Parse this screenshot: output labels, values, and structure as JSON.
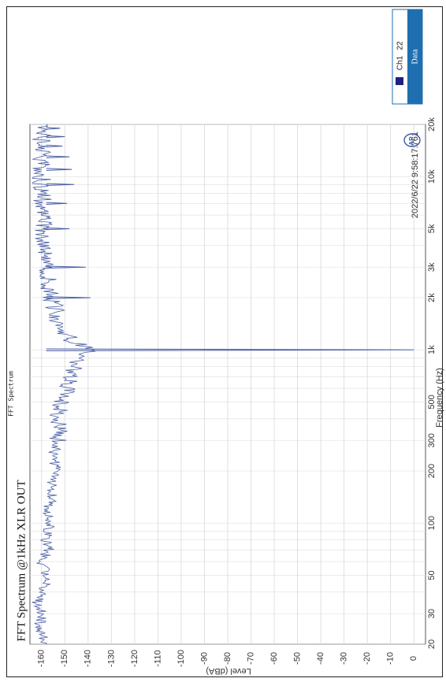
{
  "chart_data": {
    "type": "line",
    "title": "FFT Spectrum @1kHz XLR OUT",
    "subtitle": "FFT Spectrum",
    "timestamp": "2022/6/22 9:58:17.761",
    "xlabel": "Frequency (Hz)",
    "ylabel": "Level (dBA)",
    "x_scale": "log",
    "xlim": [
      20,
      20000
    ],
    "ylim": [
      -165,
      5
    ],
    "x_ticks": [
      {
        "value": 20,
        "label": "20"
      },
      {
        "value": 30,
        "label": "30"
      },
      {
        "value": 50,
        "label": "50"
      },
      {
        "value": 100,
        "label": "100"
      },
      {
        "value": 200,
        "label": "200"
      },
      {
        "value": 300,
        "label": "300"
      },
      {
        "value": 500,
        "label": "500"
      },
      {
        "value": 1000,
        "label": "1k"
      },
      {
        "value": 2000,
        "label": "2k"
      },
      {
        "value": 3000,
        "label": "3k"
      },
      {
        "value": 5000,
        "label": "5k"
      },
      {
        "value": 10000,
        "label": "10k"
      },
      {
        "value": 20000,
        "label": "20k"
      }
    ],
    "y_ticks": [
      0,
      -10,
      -20,
      -30,
      -40,
      -50,
      -60,
      -70,
      -80,
      -90,
      -100,
      -110,
      -120,
      -130,
      -140,
      -150,
      -160
    ],
    "grid": true,
    "legend": {
      "title": "Data",
      "placement": "top-right",
      "entries": [
        {
          "label": "Ch1",
          "value": "22",
          "color": "#1a237e"
        }
      ]
    },
    "series": [
      {
        "name": "Ch1",
        "color": "#4a5fa5",
        "noise_floor": [
          [
            20,
            -158
          ],
          [
            25,
            -161
          ],
          [
            30,
            -160
          ],
          [
            35,
            -162
          ],
          [
            40,
            -159
          ],
          [
            50,
            -158
          ],
          [
            60,
            -160
          ],
          [
            70,
            -157
          ],
          [
            80,
            -158
          ],
          [
            100,
            -156
          ],
          [
            120,
            -157
          ],
          [
            150,
            -155
          ],
          [
            180,
            -156
          ],
          [
            200,
            -154
          ],
          [
            250,
            -155
          ],
          [
            300,
            -153
          ],
          [
            350,
            -152
          ],
          [
            400,
            -153
          ],
          [
            500,
            -151
          ],
          [
            600,
            -149
          ],
          [
            700,
            -148
          ],
          [
            800,
            -146
          ],
          [
            900,
            -144
          ],
          [
            950,
            -140
          ],
          [
            1050,
            -141
          ],
          [
            1100,
            -146
          ],
          [
            1200,
            -149
          ],
          [
            1400,
            -152
          ],
          [
            1700,
            -154
          ],
          [
            2000,
            -156
          ],
          [
            3000,
            -158
          ],
          [
            5000,
            -159
          ],
          [
            10000,
            -160
          ],
          [
            20000,
            -160
          ]
        ],
        "peaks": [
          {
            "freq": 1000,
            "level": 0
          },
          {
            "freq": 2000,
            "level": -139
          },
          {
            "freq": 3000,
            "level": -141
          },
          {
            "freq": 5000,
            "level": -148
          },
          {
            "freq": 7000,
            "level": -149
          },
          {
            "freq": 9000,
            "level": -146
          },
          {
            "freq": 11000,
            "level": -147
          },
          {
            "freq": 13000,
            "level": -148
          },
          {
            "freq": 15000,
            "level": -151
          },
          {
            "freq": 17000,
            "level": -150
          },
          {
            "freq": 19000,
            "level": -152
          }
        ]
      }
    ]
  },
  "logo": "AP"
}
